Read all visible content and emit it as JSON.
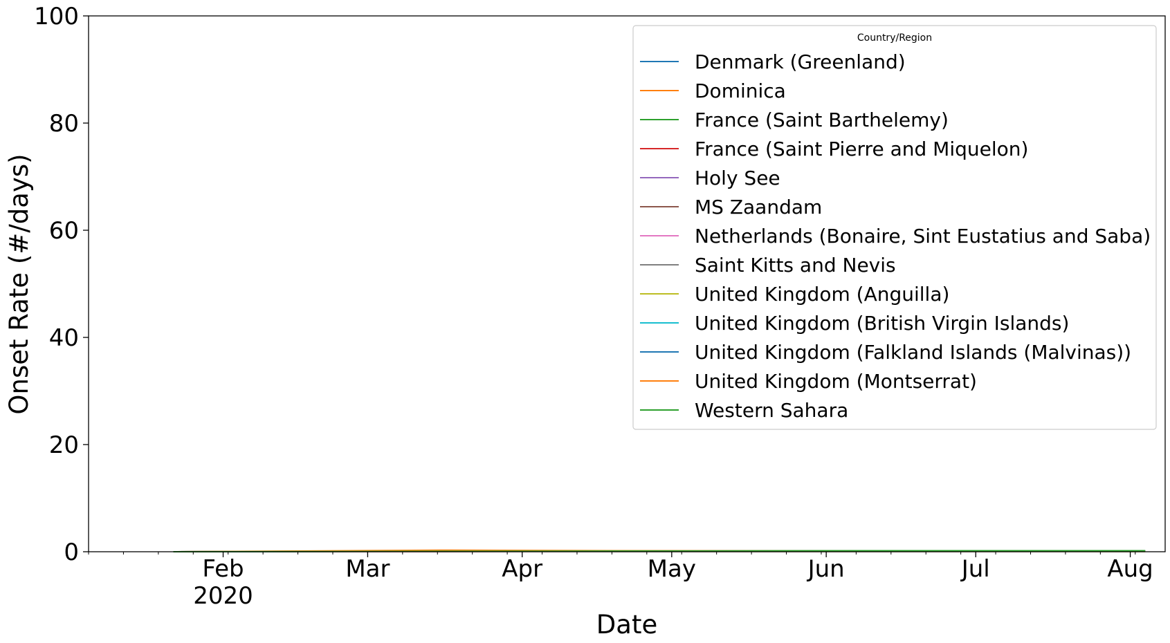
{
  "chart_data": {
    "type": "line",
    "title": "",
    "xlabel": "Date",
    "ylabel": "Onset Rate (#/days)",
    "ylim": [
      0,
      100
    ],
    "yticks": [
      0,
      20,
      40,
      60,
      80,
      100
    ],
    "xlim": [
      "2020-01-05",
      "2020-08-08"
    ],
    "xticks": [
      {
        "date": "2020-02-01",
        "label": "Feb",
        "sublabel": "2020"
      },
      {
        "date": "2020-03-01",
        "label": "Mar"
      },
      {
        "date": "2020-04-01",
        "label": "Apr"
      },
      {
        "date": "2020-05-01",
        "label": "May"
      },
      {
        "date": "2020-06-01",
        "label": "Jun"
      },
      {
        "date": "2020-07-01",
        "label": "Jul"
      },
      {
        "date": "2020-08-01",
        "label": "Aug"
      }
    ],
    "grid": false,
    "legend": {
      "title": "Country/Region",
      "position": "top-right"
    },
    "series": [
      {
        "name": "Denmark (Greenland)",
        "color": "#1f77b4",
        "points": [
          [
            "2020-01-22",
            0
          ],
          [
            "2020-03-19",
            0.1
          ],
          [
            "2020-04-15",
            0.1
          ],
          [
            "2020-08-04",
            0.1
          ]
        ]
      },
      {
        "name": "Dominica",
        "color": "#ff7f0e",
        "points": [
          [
            "2020-01-22",
            0
          ],
          [
            "2020-03-22",
            0.2
          ],
          [
            "2020-04-20",
            0.2
          ],
          [
            "2020-08-04",
            0.1
          ]
        ]
      },
      {
        "name": "France (Saint Barthelemy)",
        "color": "#2ca02c",
        "points": [
          [
            "2020-01-22",
            0
          ],
          [
            "2020-03-10",
            0.1
          ],
          [
            "2020-05-01",
            0.1
          ],
          [
            "2020-08-04",
            0.1
          ]
        ]
      },
      {
        "name": "France (Saint Pierre and Miquelon)",
        "color": "#d62728",
        "points": [
          [
            "2020-01-22",
            0
          ],
          [
            "2020-04-05",
            0.05
          ],
          [
            "2020-08-04",
            0.05
          ]
        ]
      },
      {
        "name": "Holy See",
        "color": "#9467bd",
        "points": [
          [
            "2020-01-22",
            0
          ],
          [
            "2020-03-06",
            0.1
          ],
          [
            "2020-05-10",
            0.1
          ],
          [
            "2020-08-04",
            0.1
          ]
        ]
      },
      {
        "name": "MS Zaandam",
        "color": "#8c564b",
        "points": [
          [
            "2020-01-22",
            0
          ],
          [
            "2020-03-27",
            0.1
          ],
          [
            "2020-08-04",
            0.1
          ]
        ]
      },
      {
        "name": "Netherlands (Bonaire, Sint Eustatius and Saba)",
        "color": "#e377c2",
        "points": [
          [
            "2020-01-22",
            0
          ],
          [
            "2020-04-01",
            0.1
          ],
          [
            "2020-08-04",
            0.1
          ]
        ]
      },
      {
        "name": "Saint Kitts and Nevis",
        "color": "#7f7f7f",
        "points": [
          [
            "2020-01-22",
            0
          ],
          [
            "2020-03-25",
            0.2
          ],
          [
            "2020-08-04",
            0.15
          ]
        ]
      },
      {
        "name": "United Kingdom (Anguilla)",
        "color": "#bcbd22",
        "points": [
          [
            "2020-01-22",
            0
          ],
          [
            "2020-03-26",
            0.1
          ],
          [
            "2020-08-04",
            0.05
          ]
        ]
      },
      {
        "name": "United Kingdom (British Virgin Islands)",
        "color": "#17becf",
        "points": [
          [
            "2020-01-22",
            0
          ],
          [
            "2020-03-25",
            0.1
          ],
          [
            "2020-08-04",
            0.1
          ]
        ]
      },
      {
        "name": "United Kingdom (Falkland Islands (Malvinas))",
        "color": "#1f77b4",
        "points": [
          [
            "2020-01-22",
            0
          ],
          [
            "2020-04-04",
            0.2
          ],
          [
            "2020-08-04",
            0.1
          ]
        ]
      },
      {
        "name": "United Kingdom (Montserrat)",
        "color": "#ff7f0e",
        "points": [
          [
            "2020-01-22",
            0
          ],
          [
            "2020-03-18",
            0.3
          ],
          [
            "2020-04-20",
            0.2
          ],
          [
            "2020-08-04",
            0.1
          ]
        ]
      },
      {
        "name": "Western Sahara",
        "color": "#2ca02c",
        "points": [
          [
            "2020-01-22",
            0
          ],
          [
            "2020-04-05",
            0.1
          ],
          [
            "2020-06-10",
            0.2
          ],
          [
            "2020-08-04",
            0.2
          ]
        ]
      }
    ]
  }
}
